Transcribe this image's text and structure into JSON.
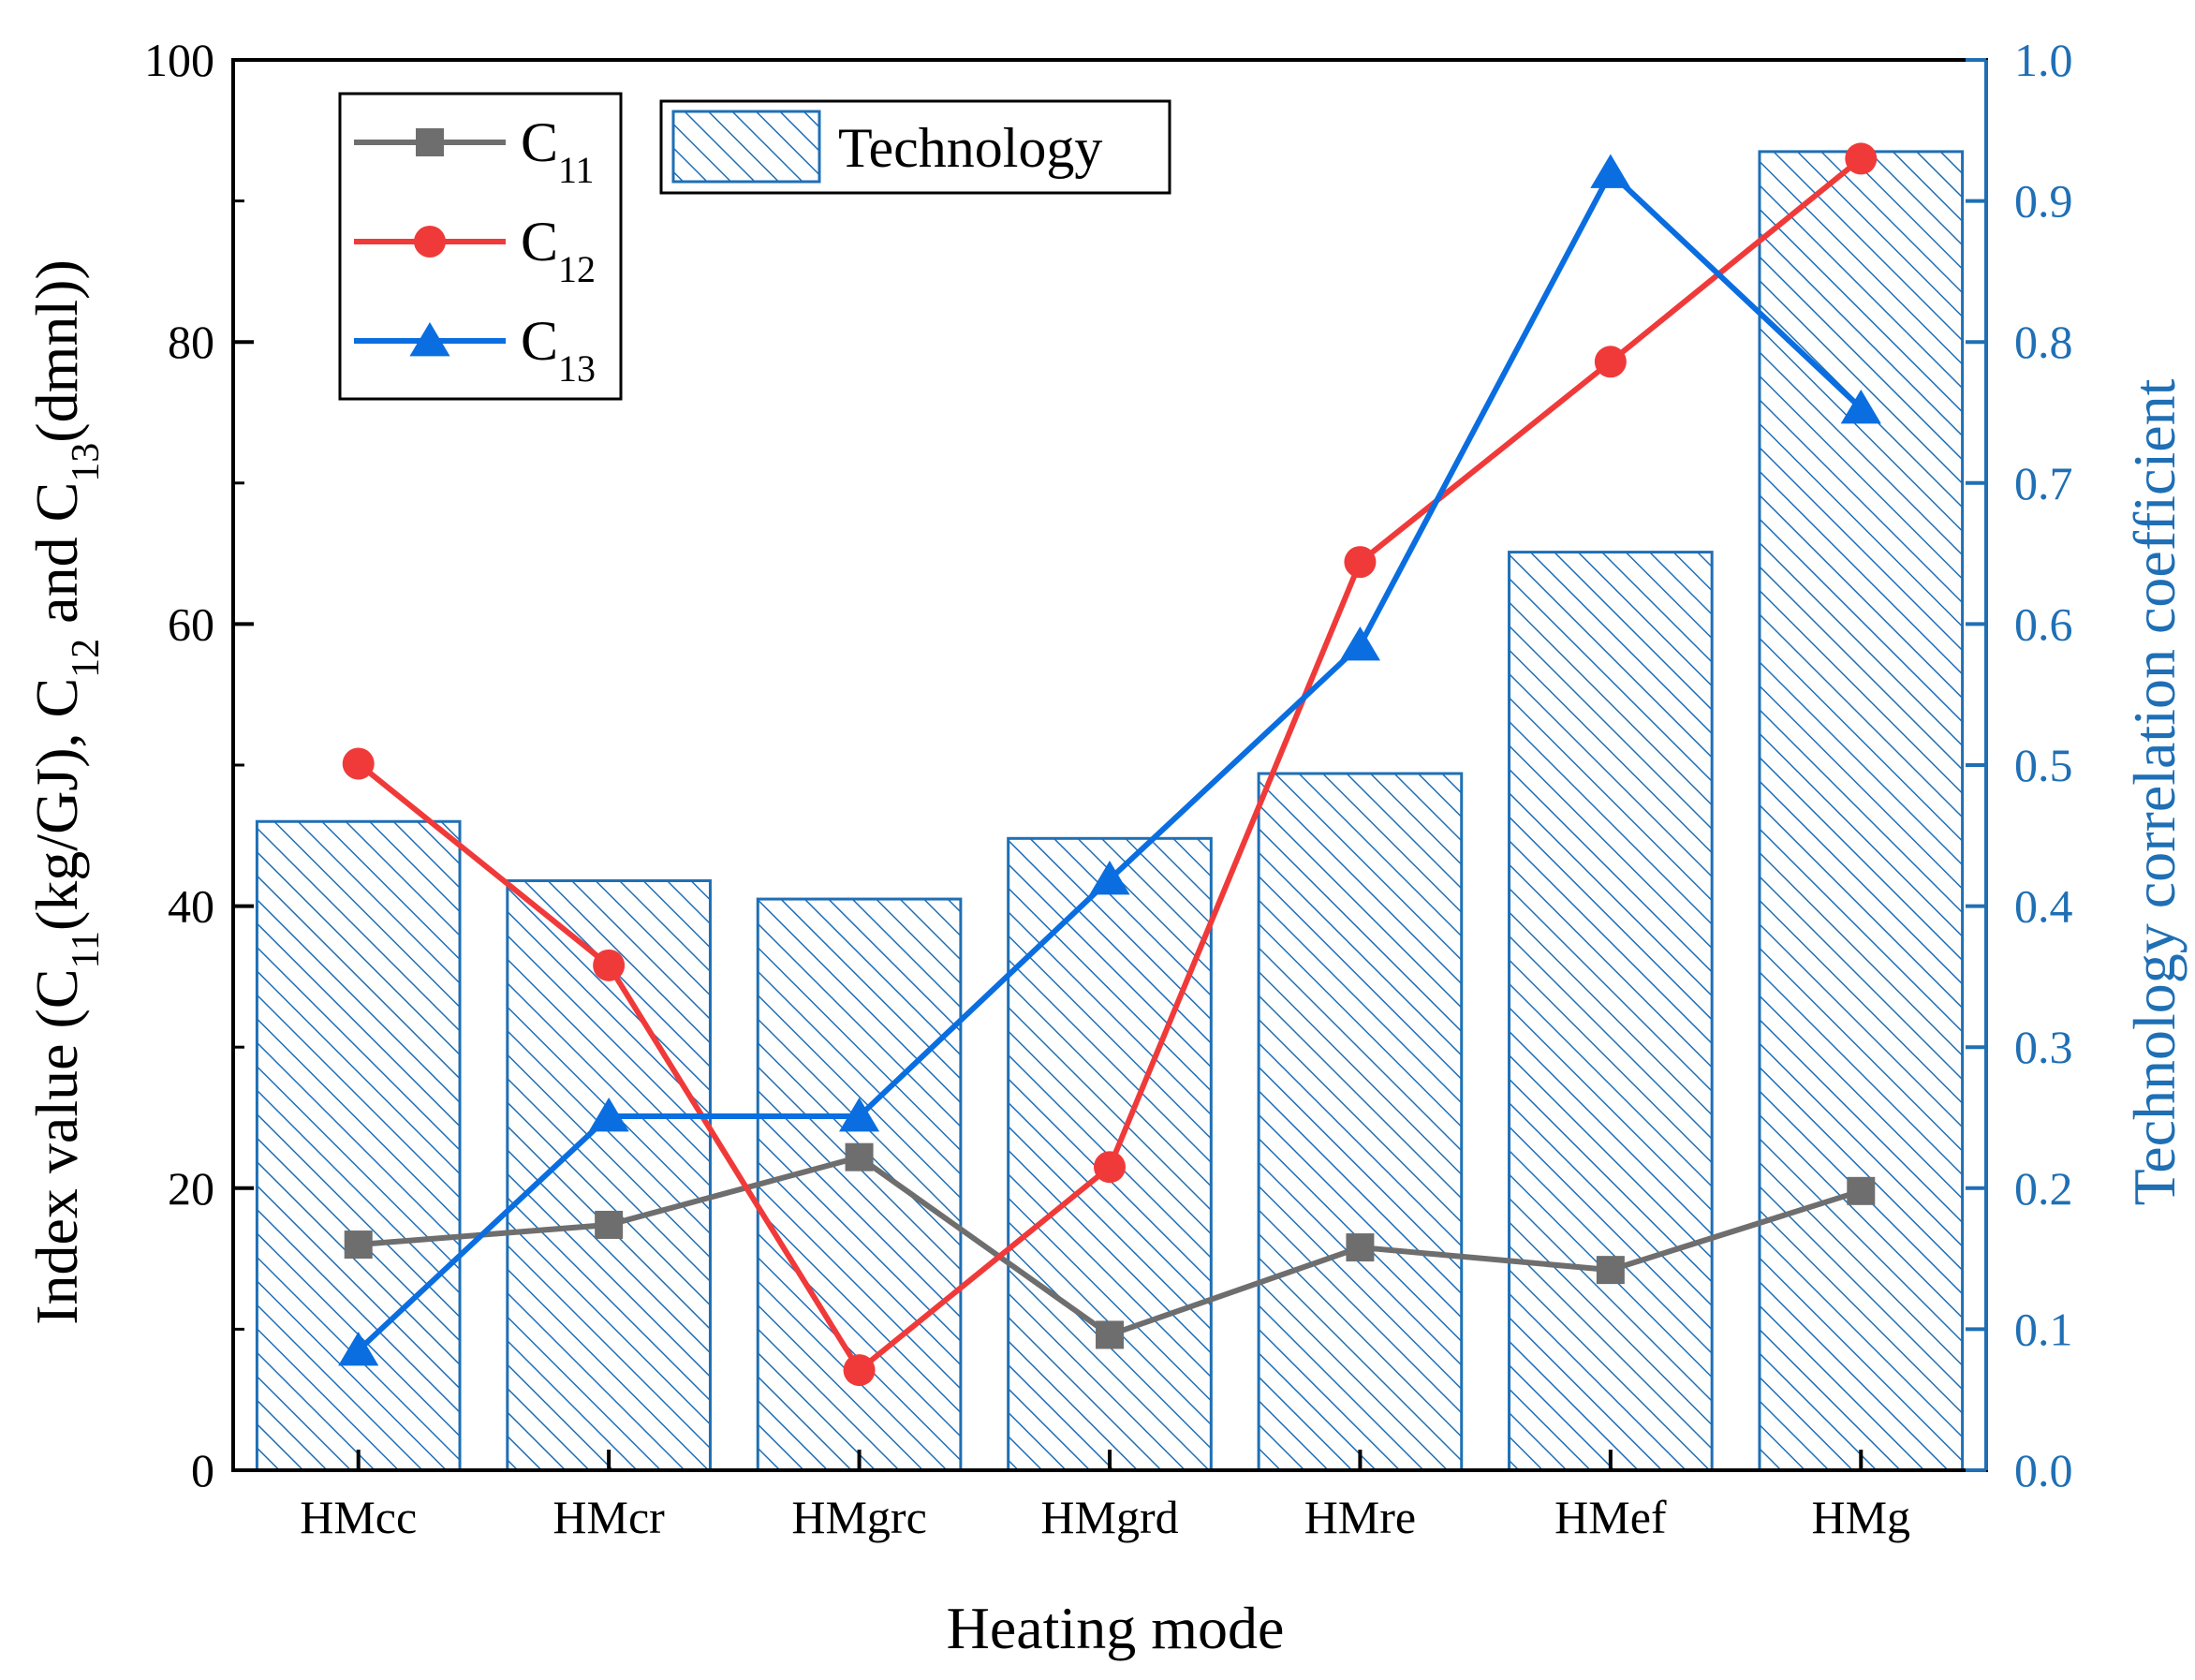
{
  "chart_data": {
    "type": "bar+line",
    "title": "",
    "xlabel": "Heating mode",
    "ylabel_left": {
      "parts": [
        {
          "t": "Index value (C"
        },
        {
          "t": "11",
          "sub": true
        },
        {
          "t": "(kg/GJ), C"
        },
        {
          "t": "12",
          "sub": true
        },
        {
          "t": " and C"
        },
        {
          "t": "13",
          "sub": true
        },
        {
          "t": "(dmnl))"
        }
      ]
    },
    "ylabel_right": "Technology correlation coefficient",
    "categories": [
      "HMcc",
      "HMcr",
      "HMgrc",
      "HMgrd",
      "HMre",
      "HMef",
      "HMg"
    ],
    "left_axis": {
      "ylim": [
        0,
        100
      ],
      "ticks": [
        0,
        20,
        40,
        60,
        80,
        100
      ],
      "tick_labels": [
        "0",
        "20",
        "40",
        "60",
        "80",
        "100"
      ]
    },
    "right_axis": {
      "ylim": [
        0,
        1
      ],
      "ticks": [
        0,
        0.1,
        0.2,
        0.3,
        0.4,
        0.5,
        0.6,
        0.7,
        0.8,
        0.9,
        1.0
      ],
      "tick_labels": [
        "0.0",
        "0.1",
        "0.2",
        "0.3",
        "0.4",
        "0.5",
        "0.6",
        "0.7",
        "0.8",
        "0.9",
        "1.0"
      ]
    },
    "bars": {
      "name": "Technology",
      "axis": "right",
      "values": [
        0.46,
        0.418,
        0.405,
        0.448,
        0.494,
        0.651,
        0.935
      ],
      "color": "#1f6fb5",
      "pattern": "diagonal-hatch"
    },
    "series": [
      {
        "name": "C",
        "sub": "11",
        "marker": "square",
        "color": "#6e6e6e",
        "axis": "left",
        "values": [
          16.0,
          17.4,
          22.2,
          9.6,
          15.8,
          14.2,
          19.8
        ]
      },
      {
        "name": "C",
        "sub": "12",
        "marker": "circle",
        "color": "#f03a3a",
        "axis": "left",
        "values": [
          50.1,
          35.8,
          7.1,
          21.5,
          64.4,
          78.6,
          93.0
        ]
      },
      {
        "name": "C",
        "sub": "13",
        "marker": "triangle",
        "color": "#0a6ee0",
        "axis": "left",
        "values": [
          8.5,
          25.1,
          25.1,
          41.9,
          58.5,
          92.0,
          75.3
        ]
      }
    ],
    "legend_placement": "top-left",
    "grid": false
  },
  "colors": {
    "axis": "#000000",
    "right_axis": "#1f6fb5"
  }
}
